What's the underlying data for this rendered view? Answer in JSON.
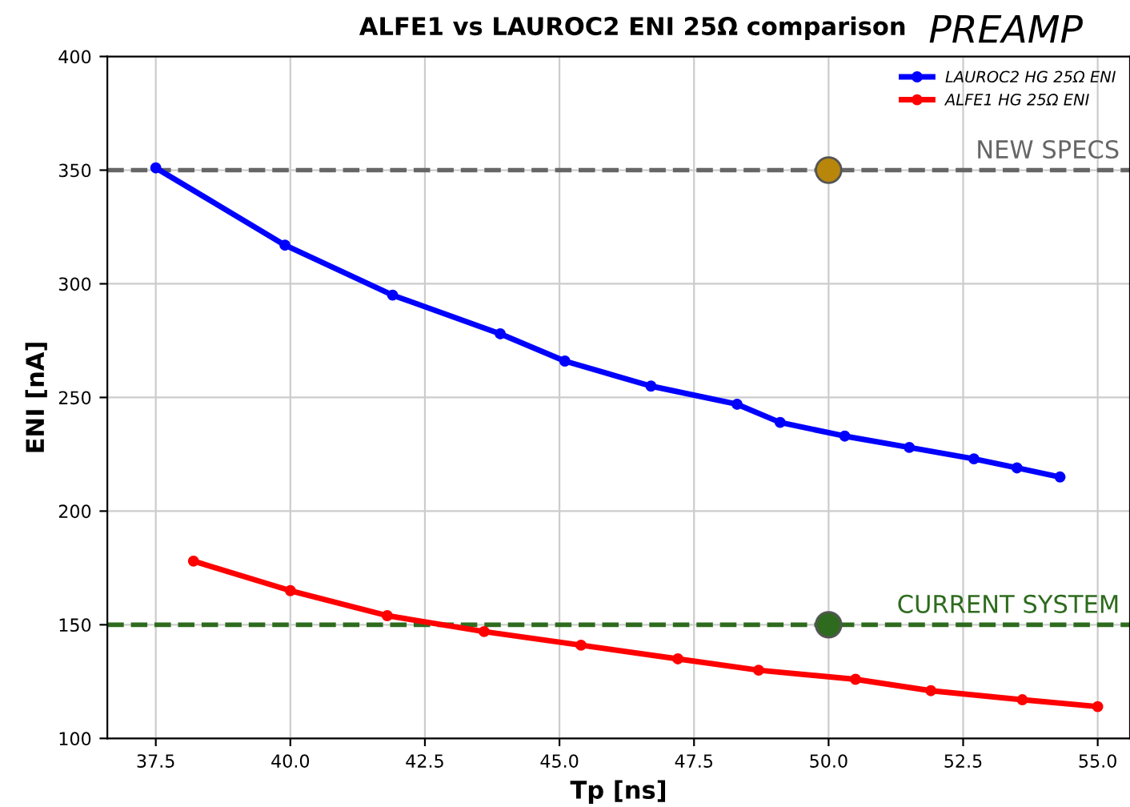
{
  "chart_data": {
    "type": "line",
    "title": "ALFE1 vs LAUROC2 ENI 25Ω comparison",
    "xlabel": "Tp [ns]",
    "ylabel": "ENI [nA]",
    "annotations": [
      "PREAMP"
    ],
    "xlim": [
      36.6,
      55.6
    ],
    "xticks": [
      37.5,
      {
        "value": 40,
        "label": "40.0"
      },
      42.5,
      {
        "value": 45,
        "label": "45.0"
      },
      47.5,
      {
        "value": 50,
        "label": "50.0"
      },
      52.5,
      {
        "value": 55,
        "label": "55.0"
      }
    ],
    "ylim": [
      100,
      400
    ],
    "yticks": [
      100,
      150,
      200,
      250,
      300,
      350,
      400
    ],
    "grid": true,
    "legend": "top right",
    "marker": "circle",
    "line_style": "solid",
    "series": [
      {
        "name": "LAUROC2 HG 25Ω ENI",
        "color": "#0000ff",
        "x": [
          37.5,
          39.9,
          41.9,
          43.9,
          45.1,
          46.7,
          48.3,
          49.1,
          50.3,
          51.5,
          52.7,
          53.5,
          54.3
        ],
        "values": [
          351,
          317,
          295,
          278,
          266,
          255,
          247,
          239,
          233,
          228,
          223,
          219,
          215
        ]
      },
      {
        "name": "ALFE1 HG 25Ω ENI",
        "color": "#ff0000",
        "x": [
          38.2,
          40.0,
          41.8,
          43.6,
          45.4,
          47.2,
          48.7,
          50.5,
          51.9,
          53.6,
          55.0
        ],
        "values": [
          178,
          165,
          154,
          147,
          141,
          135,
          130,
          126,
          121,
          117,
          114
        ]
      },
      {
        "type": "scatter",
        "color": "#b8860b",
        "x": [
          50.0
        ],
        "values": [
          350
        ]
      },
      {
        "type": "scatter",
        "color": "#2e6b1e",
        "x": [
          50.0
        ],
        "values": [
          150
        ]
      }
    ],
    "ref_lines": [
      {
        "axis": "y",
        "value": 350,
        "label": "NEW SPECS",
        "color": "#666666",
        "line_style": "dashed"
      },
      {
        "axis": "y",
        "value": 150,
        "label": "CURRENT SYSTEM",
        "color": "#2e6b1e",
        "line_style": "dashed"
      }
    ]
  }
}
